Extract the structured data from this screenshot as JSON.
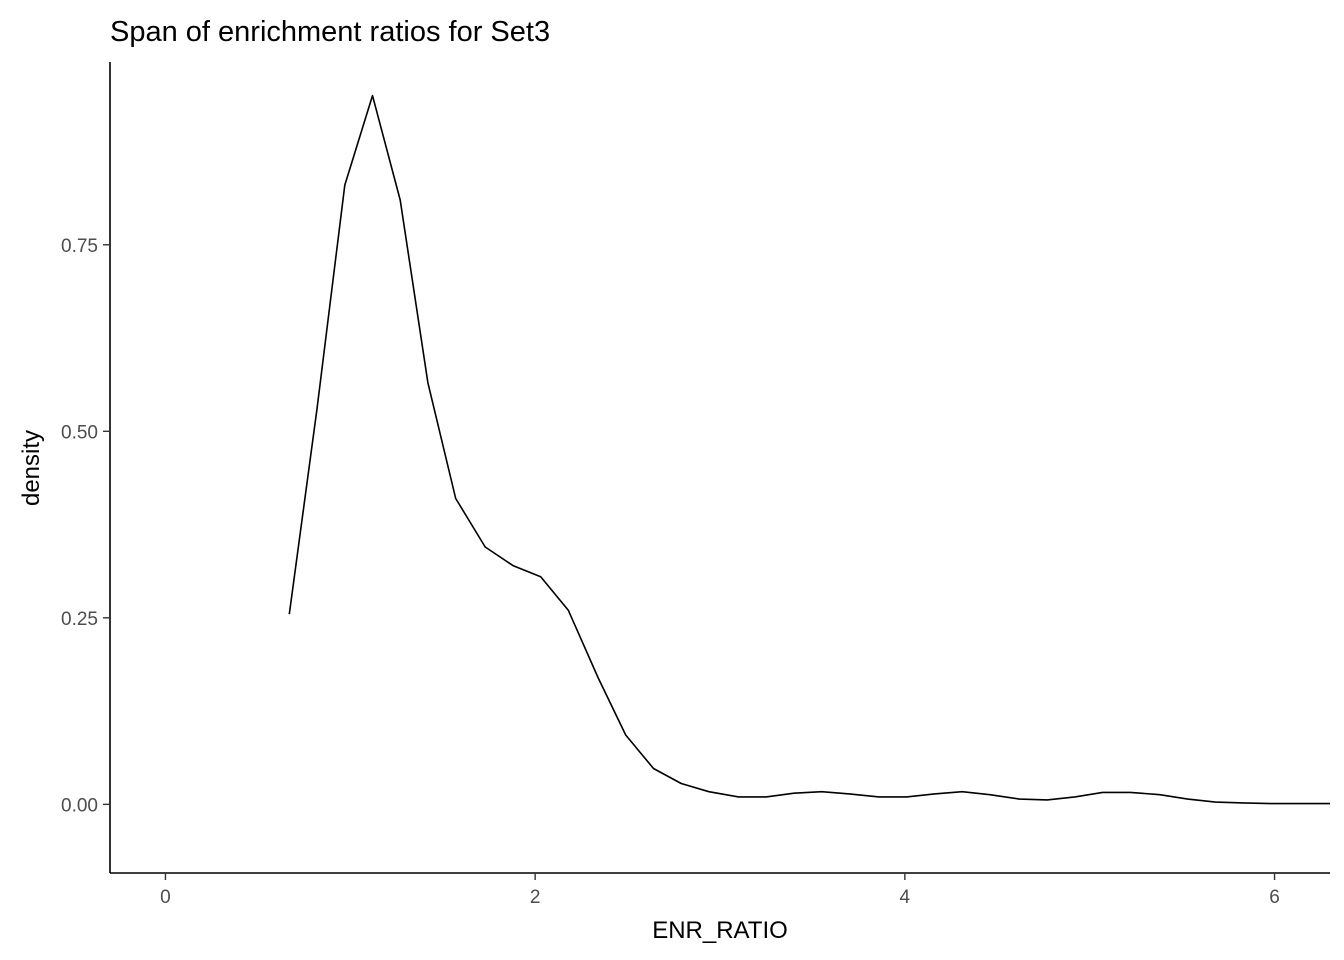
{
  "chart_data": {
    "type": "line",
    "title": "Span of enrichment ratios for Set3",
    "xlabel": "ENR_RATIO",
    "ylabel": "density",
    "xlim": [
      -0.3,
      6.3
    ],
    "ylim": [
      -0.092,
      0.995
    ],
    "x_ticks": [
      0,
      2,
      4,
      6
    ],
    "x_tick_labels": [
      "0",
      "2",
      "4",
      "6"
    ],
    "y_ticks": [
      0,
      0.25,
      0.5,
      0.75
    ],
    "y_tick_labels": [
      "0.00",
      "0.25",
      "0.50",
      "0.75"
    ],
    "grid": false,
    "legend": "none",
    "line_color": "#000000",
    "series": [
      {
        "x": [
          0.67,
          0.82,
          0.97,
          1.12,
          1.27,
          1.42,
          1.57,
          1.73,
          1.88,
          2.03,
          2.18,
          2.34,
          2.49,
          2.64,
          2.79,
          2.94,
          3.1,
          3.25,
          3.4,
          3.55,
          3.7,
          3.86,
          4.01,
          4.16,
          4.31,
          4.46,
          4.62,
          4.77,
          4.92,
          5.07,
          5.22,
          5.38,
          5.53,
          5.68,
          5.83,
          5.98,
          6.14,
          6.3
        ],
        "y": [
          0.255,
          0.53,
          0.83,
          0.95,
          0.81,
          0.565,
          0.41,
          0.345,
          0.32,
          0.305,
          0.26,
          0.17,
          0.093,
          0.048,
          0.028,
          0.017,
          0.01,
          0.01,
          0.015,
          0.017,
          0.014,
          0.01,
          0.01,
          0.014,
          0.017,
          0.013,
          0.007,
          0.006,
          0.01,
          0.016,
          0.016,
          0.013,
          0.007,
          0.003,
          0.002,
          0.001,
          0.001,
          0.001
        ]
      }
    ]
  }
}
